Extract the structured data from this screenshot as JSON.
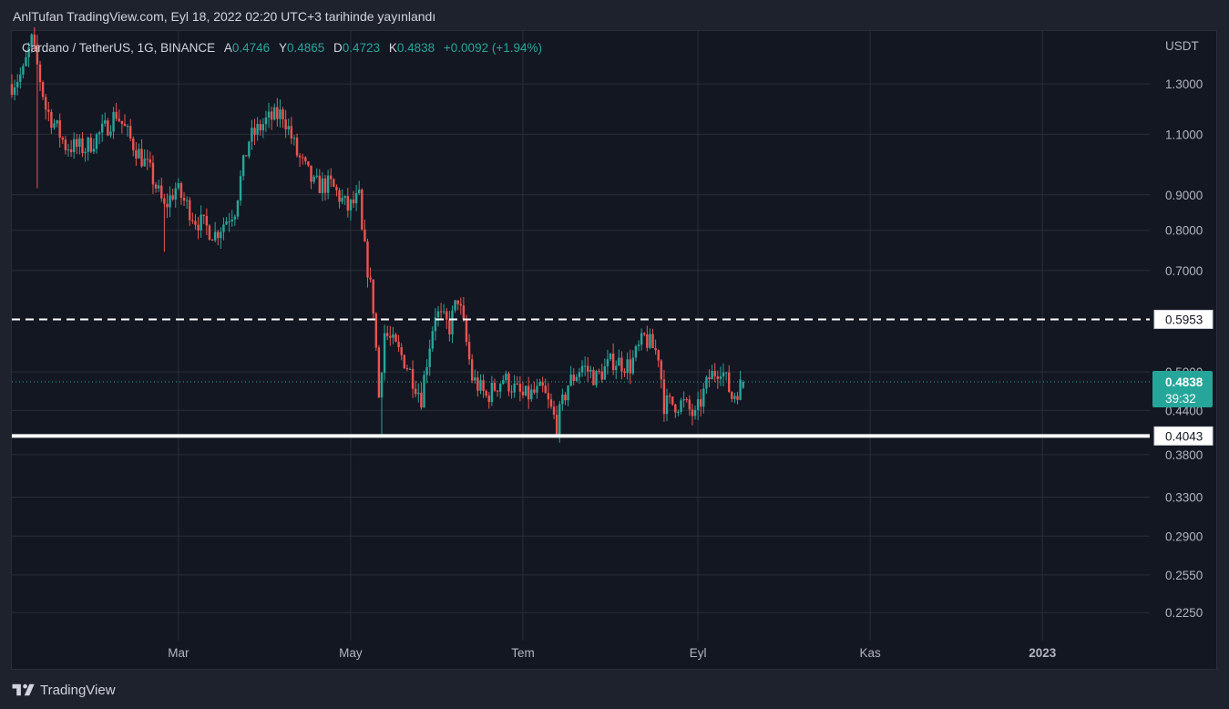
{
  "header": {
    "published": "AnlTufan TradingView.com, Eyl 18, 2022 02:20 UTC+3 tarihinde yayınlandı"
  },
  "legend": {
    "symbol": "Cardano / TetherUS, 1G, BINANCE",
    "open_label": "A",
    "open": "0.4746",
    "high_label": "Y",
    "high": "0.4865",
    "low_label": "D",
    "low": "0.4723",
    "close_label": "K",
    "close": "0.4838",
    "change": "+0.0092 (+1.94%)"
  },
  "footer": {
    "brand": "TradingView"
  },
  "colors": {
    "up": "#26a69a",
    "down": "#ef5350",
    "background": "#131722",
    "grid": "#2a2e39"
  },
  "chart_data": {
    "type": "candlestick",
    "currency_label": "USDT",
    "scale": "log",
    "y_ticks": [
      "1.3000",
      "1.1000",
      "0.9000",
      "0.8000",
      "0.7000",
      "0.5000",
      "0.4400",
      "0.3800",
      "0.3300",
      "0.2900",
      "0.2550",
      "0.2250"
    ],
    "y_range": [
      0.205,
      1.55
    ],
    "x_tick_labels": [
      "Mar",
      "May",
      "Tem",
      "Eyl",
      "Kas",
      "2023"
    ],
    "x_range": [
      "2022-01-01",
      "2023-02-08"
    ],
    "last_price": {
      "value": 0.4838,
      "label": "0.4838",
      "countdown": "39:32"
    },
    "horizontal_lines": [
      {
        "value": 0.5953,
        "label": "0.5953",
        "style": "dashed"
      },
      {
        "value": 0.4043,
        "label": "0.4043",
        "style": "solid"
      }
    ],
    "price_path": [
      [
        "2022-01-01",
        1.3
      ],
      [
        "2022-01-05",
        1.35
      ],
      [
        "2022-01-08",
        1.5
      ],
      [
        "2022-01-13",
        1.2
      ],
      [
        "2022-01-20",
        1.06
      ],
      [
        "2022-01-27",
        1.05
      ],
      [
        "2022-02-03",
        1.12
      ],
      [
        "2022-02-07",
        1.18
      ],
      [
        "2022-02-12",
        1.08
      ],
      [
        "2022-02-19",
        0.97
      ],
      [
        "2022-02-24",
        0.86
      ],
      [
        "2022-02-28",
        0.92
      ],
      [
        "2022-03-07",
        0.83
      ],
      [
        "2022-03-14",
        0.79
      ],
      [
        "2022-03-21",
        0.86
      ],
      [
        "2022-03-26",
        1.08
      ],
      [
        "2022-04-01",
        1.15
      ],
      [
        "2022-04-07",
        1.18
      ],
      [
        "2022-04-12",
        1.03
      ],
      [
        "2022-04-18",
        0.93
      ],
      [
        "2022-04-24",
        0.93
      ],
      [
        "2022-04-30",
        0.86
      ],
      [
        "2022-05-04",
        0.89
      ],
      [
        "2022-05-05",
        0.79
      ],
      [
        "2022-05-09",
        0.62
      ],
      [
        "2022-05-11",
        0.46
      ],
      [
        "2022-05-13",
        0.57
      ],
      [
        "2022-05-20",
        0.52
      ],
      [
        "2022-05-26",
        0.46
      ],
      [
        "2022-05-31",
        0.61
      ],
      [
        "2022-06-05",
        0.58
      ],
      [
        "2022-06-08",
        0.64
      ],
      [
        "2022-06-13",
        0.49
      ],
      [
        "2022-06-18",
        0.46
      ],
      [
        "2022-06-24",
        0.49
      ],
      [
        "2022-07-01",
        0.46
      ],
      [
        "2022-07-08",
        0.47
      ],
      [
        "2022-07-13",
        0.42
      ],
      [
        "2022-07-17",
        0.48
      ],
      [
        "2022-07-22",
        0.51
      ],
      [
        "2022-07-27",
        0.49
      ],
      [
        "2022-08-02",
        0.52
      ],
      [
        "2022-08-08",
        0.51
      ],
      [
        "2022-08-13",
        0.56
      ],
      [
        "2022-08-18",
        0.53
      ],
      [
        "2022-08-20",
        0.45
      ],
      [
        "2022-08-27",
        0.45
      ],
      [
        "2022-08-31",
        0.43
      ],
      [
        "2022-09-05",
        0.49
      ],
      [
        "2022-09-09",
        0.51
      ],
      [
        "2022-09-13",
        0.46
      ],
      [
        "2022-09-17",
        0.4838
      ]
    ]
  }
}
